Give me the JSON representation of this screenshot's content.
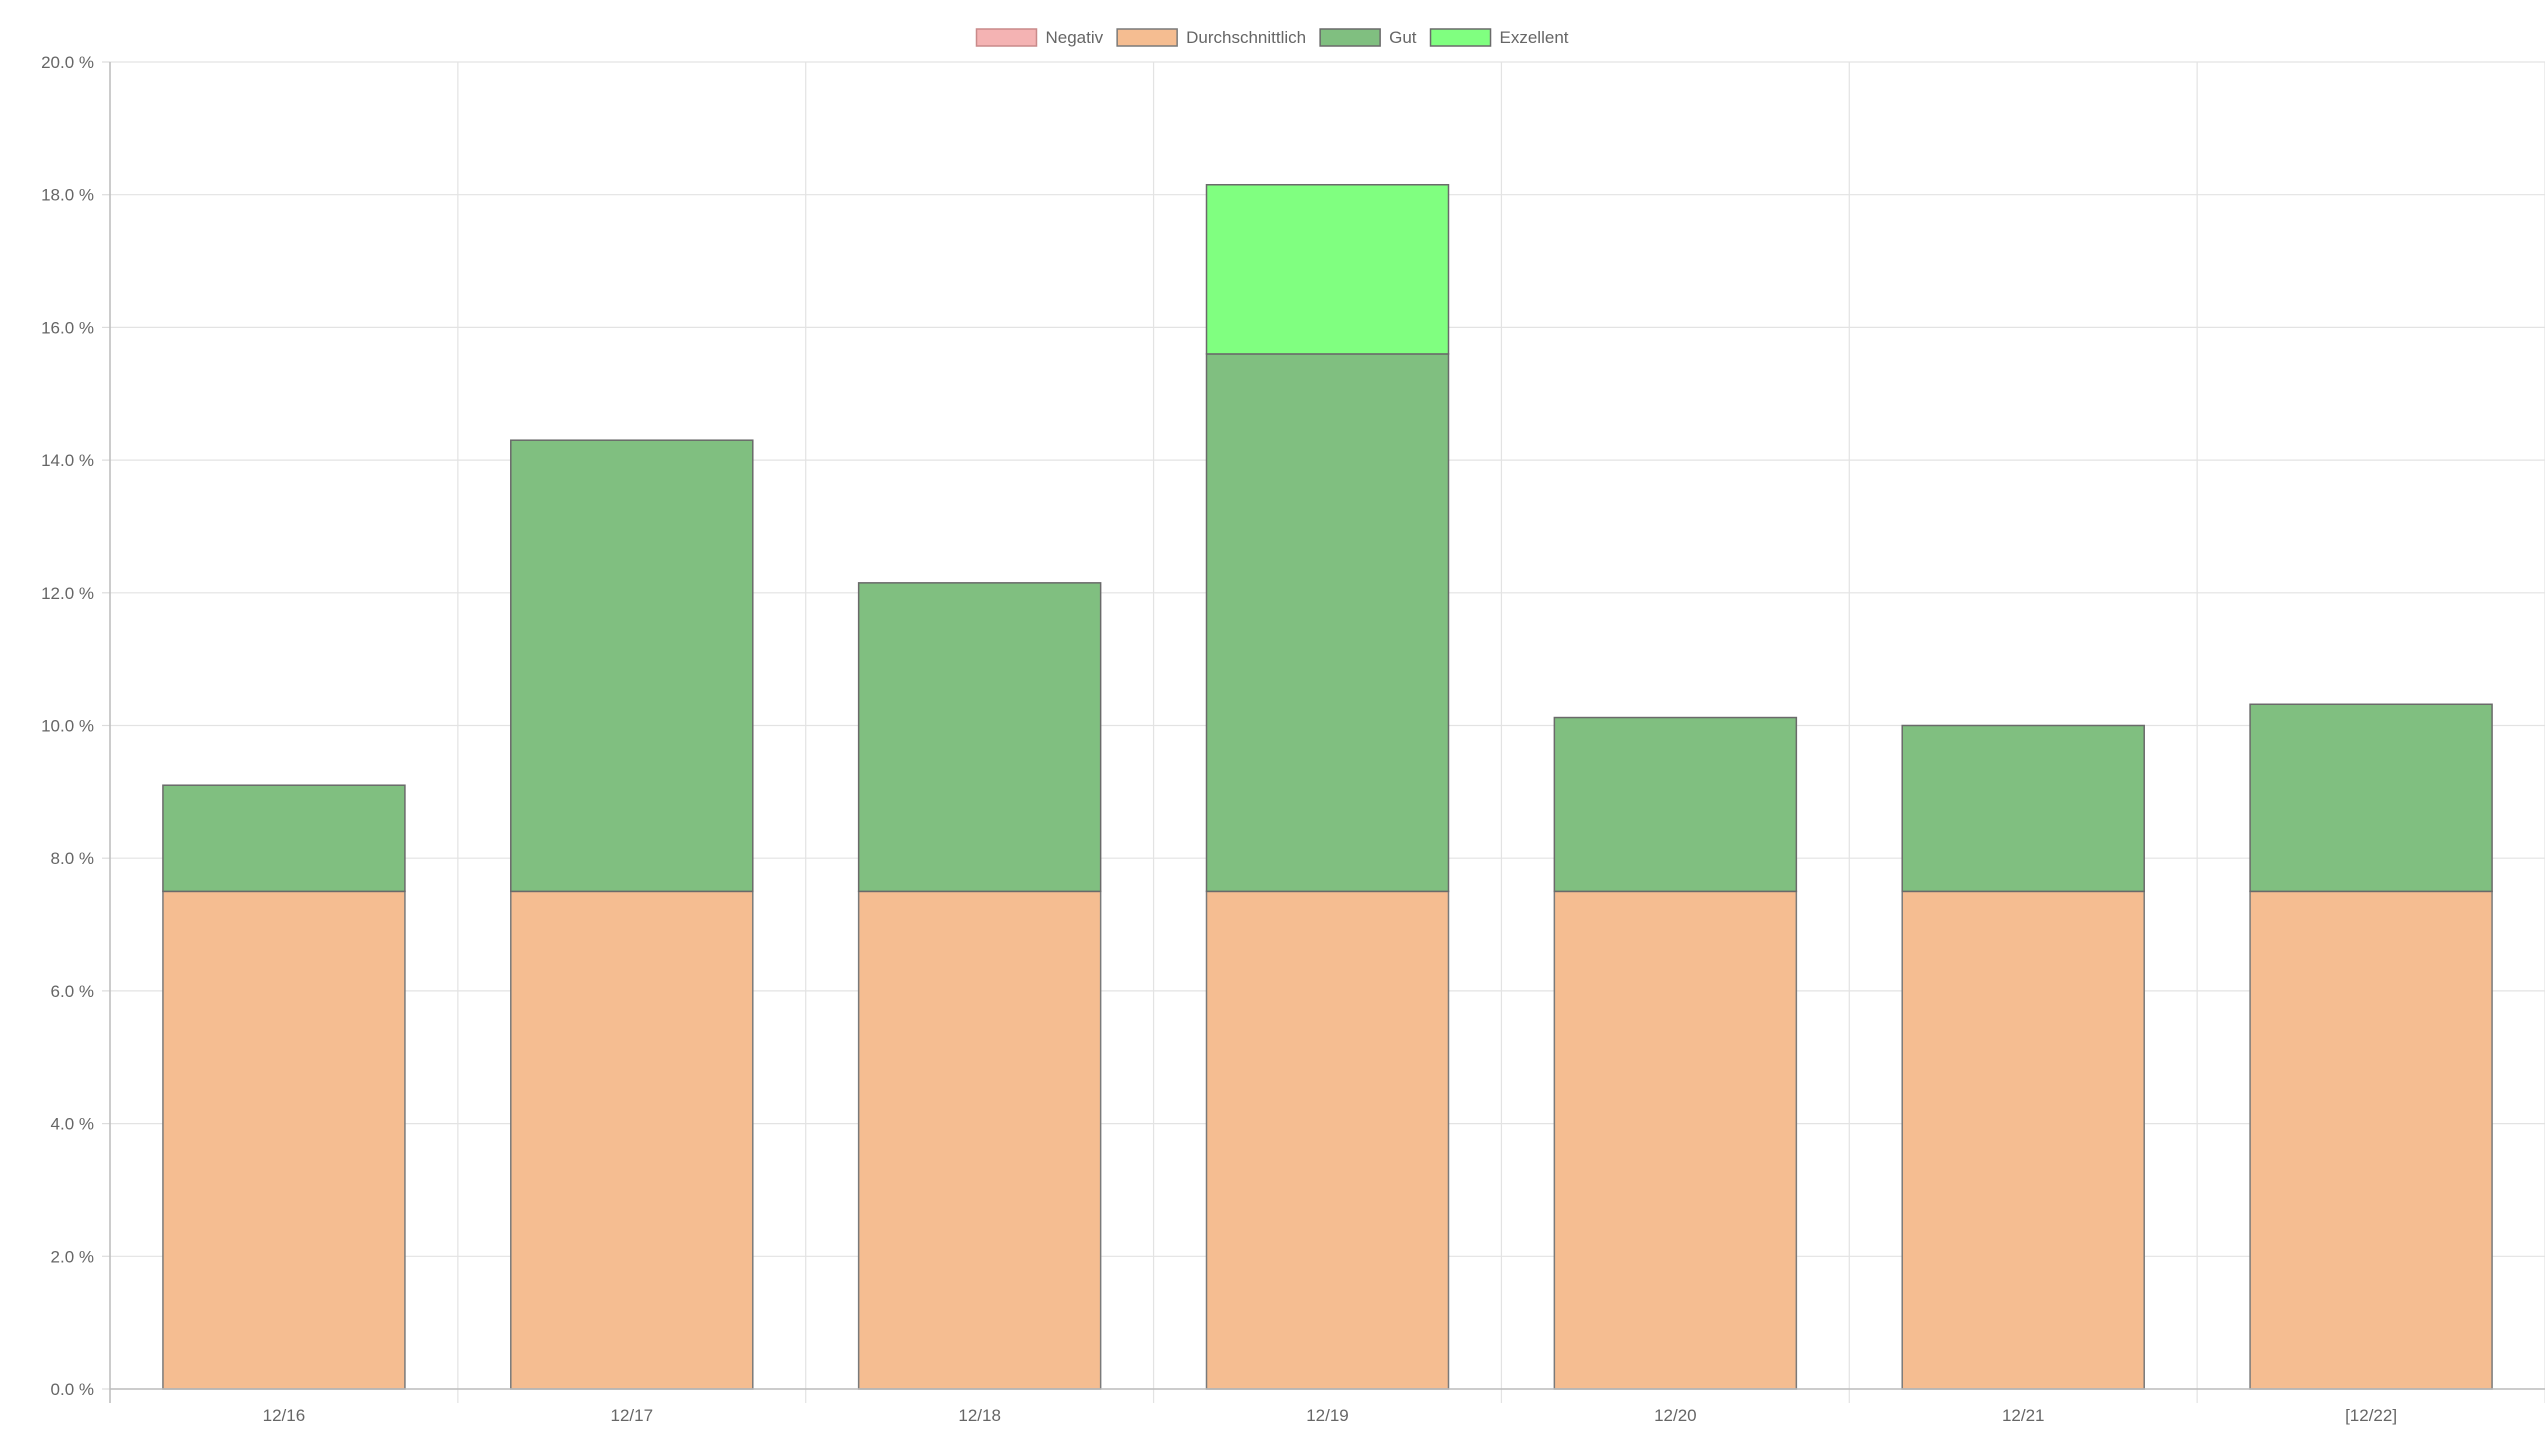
{
  "chart_data": {
    "type": "bar",
    "stacked": true,
    "categories": [
      "12/16",
      "12/17",
      "12/18",
      "12/19",
      "12/20",
      "12/21",
      "[12/22]"
    ],
    "series": [
      {
        "name": "Negativ",
        "color": "#f4b3b3",
        "border": "#c98a8a",
        "values": [
          0,
          0,
          0,
          0,
          0,
          0,
          0
        ]
      },
      {
        "name": "Durchschnittlich",
        "color": "#f5bd91",
        "border": "#7a7a7a",
        "values": [
          7.5,
          7.5,
          7.5,
          7.5,
          7.5,
          7.5,
          7.5
        ]
      },
      {
        "name": "Gut",
        "color": "#80bf80",
        "border": "#6a6a6a",
        "values": [
          1.6,
          6.8,
          4.65,
          8.1,
          2.62,
          2.5,
          2.82
        ]
      },
      {
        "name": "Exzellent",
        "color": "#80ff80",
        "border": "#6a6a6a",
        "values": [
          0,
          0,
          0,
          2.55,
          0,
          0,
          0
        ]
      }
    ],
    "ylim": [
      0,
      20
    ],
    "yticks": [
      0,
      2,
      4,
      6,
      8,
      10,
      12,
      14,
      16,
      18,
      20
    ],
    "ytick_labels": [
      "0.0 %",
      "2.0 %",
      "4.0 %",
      "6.0 %",
      "8.0 %",
      "10.0 %",
      "12.0 %",
      "14.0 %",
      "16.0 %",
      "18.0 %",
      "20.0 %"
    ],
    "title": "",
    "xlabel": "",
    "ylabel": "",
    "grid": true,
    "legend_position": "top-center"
  }
}
